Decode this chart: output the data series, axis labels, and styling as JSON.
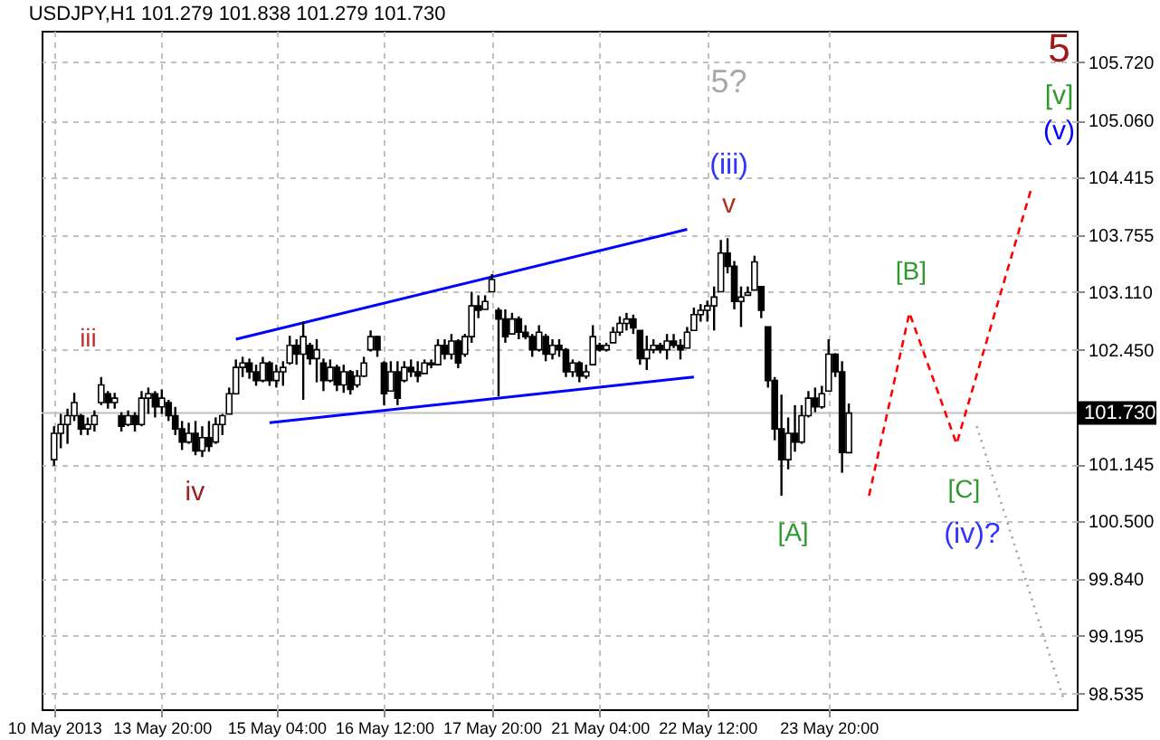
{
  "chart_data": {
    "type": "candlestick",
    "title": "USDJPY,H1  101.279 101.838 101.279 101.730",
    "color": "#000000",
    "categories": [
      "10 May 2013",
      null,
      null,
      null,
      null,
      null,
      null,
      null,
      null,
      null,
      null,
      null,
      null,
      null,
      null,
      null,
      "13 May 20:00",
      null,
      null,
      null,
      null,
      null,
      null,
      null,
      null,
      null,
      null,
      null,
      null,
      null,
      null,
      null,
      null,
      "15 May 04:00",
      null,
      null,
      null,
      null,
      null,
      null,
      null,
      null,
      null,
      null,
      null,
      null,
      null,
      null,
      null,
      "16 May 12:00",
      null,
      null,
      null,
      null,
      null,
      null,
      null,
      null,
      null,
      null,
      null,
      null,
      null,
      null,
      null,
      "17 May 20:00",
      null,
      null,
      null,
      null,
      null,
      null,
      null,
      null,
      null,
      null,
      null,
      null,
      null,
      null,
      null,
      "21 May 04:00",
      null,
      null,
      null,
      null,
      null,
      null,
      null,
      null,
      null,
      null,
      null,
      null,
      null,
      null,
      null,
      "22 May 12:00",
      null,
      null,
      null,
      null,
      null,
      null,
      null,
      null,
      null,
      null,
      null,
      null,
      null,
      null,
      null,
      null,
      null,
      "23 May 20:00",
      null,
      null,
      null,
      null,
      null,
      null,
      null,
      null,
      null,
      null,
      null,
      null,
      null,
      null,
      null,
      null,
      null,
      null,
      null,
      null,
      null,
      null,
      null,
      null,
      null,
      null,
      null,
      null,
      null,
      null,
      null,
      null,
      null,
      null,
      null
    ],
    "ohlc": [
      [
        101.2,
        101.58,
        101.13,
        101.5
      ],
      [
        101.5,
        101.72,
        101.33,
        101.6
      ],
      [
        101.6,
        101.78,
        101.38,
        101.7
      ],
      [
        101.7,
        101.96,
        101.64,
        101.85
      ],
      [
        101.7,
        101.72,
        101.48,
        101.55
      ],
      [
        101.55,
        101.68,
        101.48,
        101.6
      ],
      [
        101.6,
        101.76,
        101.52,
        101.7
      ],
      [
        101.85,
        102.14,
        101.82,
        102.05
      ],
      [
        101.95,
        101.98,
        101.78,
        101.85
      ],
      [
        101.85,
        101.96,
        101.78,
        101.9
      ],
      [
        101.7,
        101.74,
        101.52,
        101.58
      ],
      [
        101.6,
        101.76,
        101.58,
        101.7
      ],
      [
        101.7,
        101.74,
        101.52,
        101.6
      ],
      [
        101.6,
        101.98,
        101.58,
        101.9
      ],
      [
        101.9,
        102.02,
        101.72,
        101.95
      ],
      [
        101.95,
        101.98,
        101.68,
        101.8
      ],
      [
        101.8,
        102.0,
        101.72,
        101.9
      ],
      [
        101.85,
        101.88,
        101.64,
        101.7
      ],
      [
        101.7,
        101.8,
        101.48,
        101.55
      ],
      [
        101.55,
        101.64,
        101.31,
        101.4
      ],
      [
        101.4,
        101.62,
        101.38,
        101.5
      ],
      [
        101.5,
        101.64,
        101.25,
        101.3
      ],
      [
        101.3,
        101.58,
        101.23,
        101.45
      ],
      [
        101.45,
        101.64,
        101.29,
        101.35
      ],
      [
        101.4,
        101.68,
        101.38,
        101.6
      ],
      [
        101.6,
        101.72,
        101.48,
        101.7
      ],
      [
        101.72,
        102.02,
        101.72,
        101.95
      ],
      [
        101.95,
        102.34,
        101.94,
        102.25
      ],
      [
        102.25,
        102.37,
        102.14,
        102.3
      ],
      [
        102.3,
        102.35,
        102.12,
        102.2
      ],
      [
        102.2,
        102.28,
        102.04,
        102.1
      ],
      [
        102.1,
        102.37,
        102.08,
        102.3
      ],
      [
        102.3,
        102.32,
        102.04,
        102.1
      ],
      [
        102.1,
        102.28,
        102.02,
        102.2
      ],
      [
        102.2,
        102.32,
        102.04,
        102.25
      ],
      [
        102.3,
        102.61,
        102.28,
        102.5
      ],
      [
        102.5,
        102.57,
        102.28,
        102.4
      ],
      [
        102.4,
        102.77,
        101.88,
        102.6
      ],
      [
        102.5,
        102.53,
        102.28,
        102.35
      ],
      [
        102.35,
        102.57,
        102.08,
        102.45
      ],
      [
        102.3,
        102.35,
        101.98,
        102.1
      ],
      [
        102.1,
        102.34,
        102.08,
        102.25
      ],
      [
        102.25,
        102.28,
        101.98,
        102.05
      ],
      [
        102.05,
        102.28,
        101.96,
        102.2
      ],
      [
        102.2,
        102.22,
        101.94,
        102.0
      ],
      [
        102.05,
        102.22,
        102.02,
        102.15
      ],
      [
        102.15,
        102.37,
        102.14,
        102.3
      ],
      [
        102.45,
        102.67,
        102.43,
        102.6
      ],
      [
        102.6,
        102.61,
        102.37,
        102.45
      ],
      [
        102.3,
        102.32,
        101.82,
        101.95
      ],
      [
        101.98,
        102.32,
        101.98,
        102.2
      ],
      [
        102.2,
        102.32,
        101.82,
        101.9
      ],
      [
        102.1,
        102.32,
        102.08,
        102.25
      ],
      [
        102.25,
        102.34,
        102.14,
        102.2
      ],
      [
        102.2,
        102.32,
        102.08,
        102.15
      ],
      [
        102.18,
        102.34,
        102.18,
        102.3
      ],
      [
        102.3,
        102.34,
        102.24,
        102.28
      ],
      [
        102.28,
        102.57,
        102.28,
        102.5
      ],
      [
        102.5,
        102.57,
        102.34,
        102.4
      ],
      [
        102.4,
        102.63,
        102.34,
        102.55
      ],
      [
        102.55,
        102.57,
        102.24,
        102.3
      ],
      [
        102.4,
        102.63,
        102.37,
        102.6
      ],
      [
        102.6,
        103.11,
        102.53,
        102.95
      ],
      [
        102.95,
        103.07,
        102.81,
        102.9
      ],
      [
        102.91,
        103.07,
        102.91,
        103.0
      ],
      [
        103.11,
        103.31,
        103.11,
        103.25
      ],
      [
        102.9,
        102.93,
        101.92,
        102.8
      ],
      [
        102.8,
        102.91,
        102.53,
        102.6
      ],
      [
        102.63,
        102.87,
        102.63,
        102.8
      ],
      [
        102.8,
        102.83,
        102.57,
        102.65
      ],
      [
        102.65,
        102.73,
        102.57,
        102.6
      ],
      [
        102.6,
        102.63,
        102.37,
        102.45
      ],
      [
        102.45,
        102.73,
        102.43,
        102.65
      ],
      [
        102.6,
        102.63,
        102.32,
        102.4
      ],
      [
        102.4,
        102.57,
        102.34,
        102.5
      ],
      [
        102.5,
        102.57,
        102.37,
        102.45
      ],
      [
        102.45,
        102.47,
        102.14,
        102.2
      ],
      [
        102.2,
        102.34,
        102.14,
        102.3
      ],
      [
        102.3,
        102.32,
        102.08,
        102.15
      ],
      [
        102.15,
        102.28,
        102.12,
        102.2
      ],
      [
        102.28,
        102.73,
        102.28,
        102.6
      ],
      [
        102.5,
        102.53,
        102.43,
        102.45
      ],
      [
        102.45,
        102.53,
        102.43,
        102.5
      ],
      [
        102.53,
        102.71,
        102.53,
        102.65
      ],
      [
        102.65,
        102.83,
        102.61,
        102.75
      ],
      [
        102.75,
        102.87,
        102.67,
        102.8
      ],
      [
        102.8,
        102.85,
        102.63,
        102.7
      ],
      [
        102.67,
        102.67,
        102.28,
        102.35
      ],
      [
        102.35,
        102.61,
        102.22,
        102.45
      ],
      [
        102.45,
        102.57,
        102.41,
        102.5
      ],
      [
        102.5,
        102.53,
        102.41,
        102.45
      ],
      [
        102.45,
        102.63,
        102.34,
        102.55
      ],
      [
        102.55,
        102.63,
        102.47,
        102.5
      ],
      [
        102.5,
        102.57,
        102.34,
        102.45
      ],
      [
        102.47,
        102.71,
        102.47,
        102.65
      ],
      [
        102.67,
        102.93,
        102.67,
        102.85
      ],
      [
        102.85,
        102.97,
        102.77,
        102.9
      ],
      [
        102.9,
        103.01,
        102.77,
        102.95
      ],
      [
        102.95,
        103.17,
        102.67,
        103.05
      ],
      [
        103.11,
        103.7,
        103.11,
        103.55
      ],
      [
        103.55,
        103.72,
        103.32,
        103.4
      ],
      [
        103.4,
        103.46,
        102.91,
        103.0
      ],
      [
        103.0,
        103.17,
        102.71,
        103.05
      ],
      [
        103.07,
        103.17,
        103.07,
        103.1
      ],
      [
        103.13,
        103.52,
        103.13,
        103.45
      ],
      [
        103.17,
        103.17,
        102.81,
        102.9
      ],
      [
        102.71,
        102.71,
        102.02,
        102.1
      ],
      [
        102.1,
        102.14,
        101.42,
        101.55
      ],
      [
        101.55,
        101.94,
        100.79,
        101.2
      ],
      [
        101.2,
        101.68,
        101.09,
        101.5
      ],
      [
        101.5,
        101.82,
        101.29,
        101.4
      ],
      [
        101.4,
        101.82,
        101.38,
        101.7
      ],
      [
        101.7,
        101.98,
        101.68,
        101.9
      ],
      [
        101.9,
        102.02,
        101.74,
        101.8
      ],
      [
        101.8,
        102.04,
        101.78,
        101.95
      ],
      [
        101.98,
        102.57,
        101.98,
        102.4
      ],
      [
        102.4,
        102.41,
        102.14,
        102.2
      ],
      [
        102.2,
        102.32,
        101.05,
        101.28
      ],
      [
        101.279,
        101.838,
        101.279,
        101.73
      ],
      null,
      null,
      null,
      null,
      null,
      null,
      null,
      null,
      null,
      null,
      null,
      null,
      null,
      null,
      null,
      null,
      null,
      null,
      null,
      null,
      null,
      null,
      null,
      null,
      null,
      null,
      null,
      null,
      null,
      null,
      null,
      null
    ],
    "series": [
      {
        "type": "line",
        "color": "#0000ff",
        "line_style": "solid",
        "values": [
          null,
          null,
          null,
          null,
          null,
          null,
          null,
          null,
          null,
          null,
          null,
          null,
          null,
          null,
          null,
          null,
          null,
          null,
          null,
          null,
          null,
          null,
          null,
          null,
          null,
          null,
          null,
          102.57,
          null,
          null,
          null,
          null,
          null,
          null,
          null,
          null,
          null,
          null,
          null,
          null,
          null,
          null,
          null,
          null,
          null,
          null,
          null,
          null,
          null,
          null,
          null,
          null,
          null,
          null,
          null,
          null,
          null,
          null,
          null,
          null,
          null,
          null,
          null,
          null,
          null,
          null,
          null,
          null,
          null,
          null,
          null,
          null,
          null,
          null,
          null,
          null,
          null,
          null,
          null,
          null,
          null,
          null,
          null,
          null,
          null,
          null,
          null,
          null,
          null,
          null,
          null,
          null,
          null,
          null,
          103.82,
          null,
          null,
          null,
          null,
          null,
          null,
          null,
          null,
          null,
          null,
          null,
          null,
          null,
          null,
          null,
          null,
          null,
          null,
          null,
          null,
          null,
          null,
          null,
          null,
          null,
          null,
          null,
          null,
          null,
          null,
          null,
          null,
          null,
          null,
          null,
          null,
          null,
          null,
          null,
          null,
          null,
          null,
          null,
          null,
          null,
          null,
          null,
          null,
          null,
          null,
          null,
          null,
          null,
          null,
          null,
          null
        ]
      },
      {
        "type": "line",
        "color": "#0000ff",
        "line_style": "solid",
        "values": [
          null,
          null,
          null,
          null,
          null,
          null,
          null,
          null,
          null,
          null,
          null,
          null,
          null,
          null,
          null,
          null,
          null,
          null,
          null,
          null,
          null,
          null,
          null,
          null,
          null,
          null,
          null,
          null,
          null,
          null,
          null,
          null,
          101.62,
          null,
          null,
          null,
          null,
          null,
          null,
          null,
          null,
          null,
          null,
          null,
          null,
          null,
          null,
          null,
          null,
          null,
          null,
          null,
          null,
          null,
          null,
          null,
          null,
          null,
          null,
          null,
          null,
          null,
          null,
          null,
          null,
          null,
          null,
          null,
          null,
          null,
          null,
          null,
          null,
          null,
          null,
          null,
          null,
          null,
          null,
          null,
          null,
          null,
          null,
          null,
          null,
          null,
          null,
          null,
          null,
          null,
          null,
          null,
          null,
          null,
          null,
          102.14,
          null,
          null,
          null,
          null,
          null,
          null,
          null,
          null,
          null,
          null,
          null,
          null,
          null,
          null,
          null,
          null,
          null,
          null,
          null,
          null,
          null,
          null,
          null,
          null,
          null,
          null,
          null,
          null,
          null,
          null,
          null,
          null,
          null,
          null,
          null,
          null,
          null,
          null,
          null,
          null,
          null,
          null,
          null,
          null,
          null,
          null,
          null,
          null,
          null,
          null,
          null,
          null,
          null,
          null,
          null
        ]
      },
      {
        "type": "line",
        "color": "#ff0000",
        "line_style": "dashed",
        "values": [
          null,
          null,
          null,
          null,
          null,
          null,
          null,
          null,
          null,
          null,
          null,
          null,
          null,
          null,
          null,
          null,
          null,
          null,
          null,
          null,
          null,
          null,
          null,
          null,
          null,
          null,
          null,
          null,
          null,
          null,
          null,
          null,
          null,
          null,
          null,
          null,
          null,
          null,
          null,
          null,
          null,
          null,
          null,
          null,
          null,
          null,
          null,
          null,
          null,
          null,
          null,
          null,
          null,
          null,
          null,
          null,
          null,
          null,
          null,
          null,
          null,
          null,
          null,
          null,
          null,
          null,
          null,
          null,
          null,
          null,
          null,
          null,
          null,
          null,
          null,
          null,
          null,
          null,
          null,
          null,
          null,
          null,
          null,
          null,
          null,
          null,
          null,
          null,
          null,
          null,
          null,
          null,
          null,
          null,
          null,
          null,
          null,
          null,
          null,
          null,
          null,
          null,
          null,
          null,
          null,
          null,
          null,
          null,
          null,
          null,
          null,
          null,
          null,
          null,
          null,
          null,
          null,
          null,
          null,
          null,
          null,
          100.79,
          null,
          null,
          null,
          null,
          null,
          102.87,
          null,
          null,
          null,
          null,
          null,
          null,
          101.38,
          null,
          null,
          null,
          null,
          null,
          null,
          null,
          null,
          null,
          null,
          104.26,
          null,
          null,
          null,
          null,
          null
        ]
      },
      {
        "type": "line",
        "color": "#a0a0a0",
        "line_style": "dotted",
        "values": [
          null,
          null,
          null,
          null,
          null,
          null,
          null,
          null,
          null,
          null,
          null,
          null,
          null,
          null,
          null,
          null,
          null,
          null,
          null,
          null,
          null,
          null,
          null,
          null,
          null,
          null,
          null,
          null,
          null,
          null,
          null,
          null,
          null,
          null,
          null,
          null,
          null,
          null,
          null,
          null,
          null,
          null,
          null,
          null,
          null,
          null,
          null,
          null,
          null,
          null,
          null,
          null,
          null,
          null,
          null,
          null,
          null,
          null,
          null,
          null,
          null,
          null,
          null,
          null,
          null,
          null,
          null,
          null,
          null,
          null,
          null,
          null,
          null,
          null,
          null,
          null,
          null,
          null,
          null,
          null,
          null,
          null,
          null,
          null,
          null,
          null,
          null,
          null,
          null,
          null,
          null,
          null,
          null,
          null,
          null,
          null,
          null,
          null,
          null,
          null,
          null,
          null,
          null,
          null,
          null,
          null,
          null,
          null,
          null,
          null,
          null,
          null,
          null,
          null,
          null,
          null,
          null,
          null,
          null,
          null,
          null,
          null,
          null,
          null,
          null,
          null,
          null,
          null,
          null,
          null,
          null,
          null,
          null,
          null,
          null,
          null,
          null,
          101.58,
          null,
          null,
          null,
          null,
          null,
          null,
          null,
          null,
          null,
          null,
          null,
          null,
          98.45
        ]
      }
    ],
    "ylim": [
      98.36,
      106.08
    ],
    "yticks": [
      98.535,
      99.195,
      {
        "value": 99.84,
        "label": "99.840"
      },
      {
        "value": 100.5,
        "label": "100.500"
      },
      101.145,
      {
        "value": 102.45,
        "label": "102.450"
      },
      {
        "value": 103.11,
        "label": "103.110"
      },
      103.755,
      104.415,
      {
        "value": 105.06,
        "label": "105.060"
      },
      {
        "value": 105.72,
        "label": "105.720"
      }
    ],
    "grid": true,
    "ref_lines": [
      {
        "axis": "y",
        "value": 101.73,
        "label": "101.730",
        "color": "#c0c0c0"
      }
    ],
    "annotations": [
      "5?",
      "5",
      "[v]",
      "(v)",
      "(iii)",
      "v",
      "iii",
      "iv",
      "[B]",
      "[A]",
      "[C]",
      "(iv)?"
    ]
  }
}
